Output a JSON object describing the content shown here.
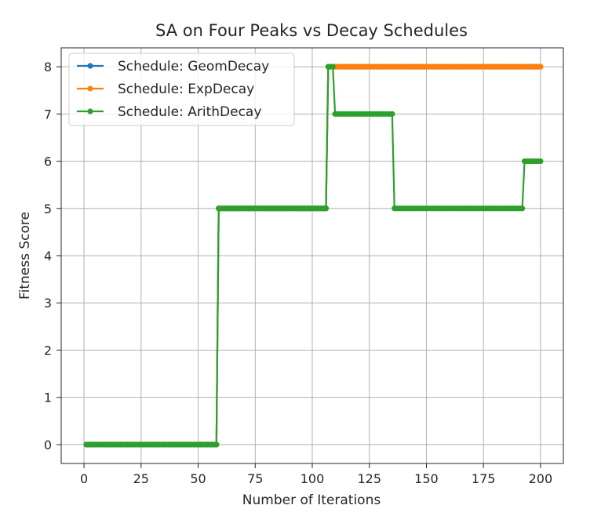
{
  "chart_data": {
    "type": "line",
    "title": "SA on Four Peaks vs Decay Schedules",
    "xlabel": "Number of Iterations",
    "ylabel": "Fitness Score",
    "xlim": [
      -10,
      210
    ],
    "ylim": [
      -0.4,
      8.4
    ],
    "xticks": [
      0,
      25,
      50,
      75,
      100,
      125,
      150,
      175,
      200
    ],
    "yticks": [
      0,
      1,
      2,
      3,
      4,
      5,
      6,
      7,
      8
    ],
    "grid": true,
    "legend_position": "upper-left",
    "marker": "circle",
    "series": [
      {
        "name": "Schedule: GeomDecay",
        "color": "#1f77b4",
        "steps": [
          [
            1,
            0
          ],
          [
            59,
            5
          ],
          [
            107,
            8
          ]
        ],
        "x_end": 200
      },
      {
        "name": "Schedule: ExpDecay",
        "color": "#ff7f0e",
        "steps": [
          [
            1,
            0
          ],
          [
            59,
            5
          ],
          [
            107,
            8
          ]
        ],
        "x_end": 200
      },
      {
        "name": "Schedule: ArithDecay",
        "color": "#2ca02c",
        "steps": [
          [
            1,
            0
          ],
          [
            59,
            5
          ],
          [
            107,
            8
          ],
          [
            110,
            7
          ],
          [
            136,
            5
          ],
          [
            193,
            6
          ]
        ],
        "x_end": 200
      }
    ]
  }
}
